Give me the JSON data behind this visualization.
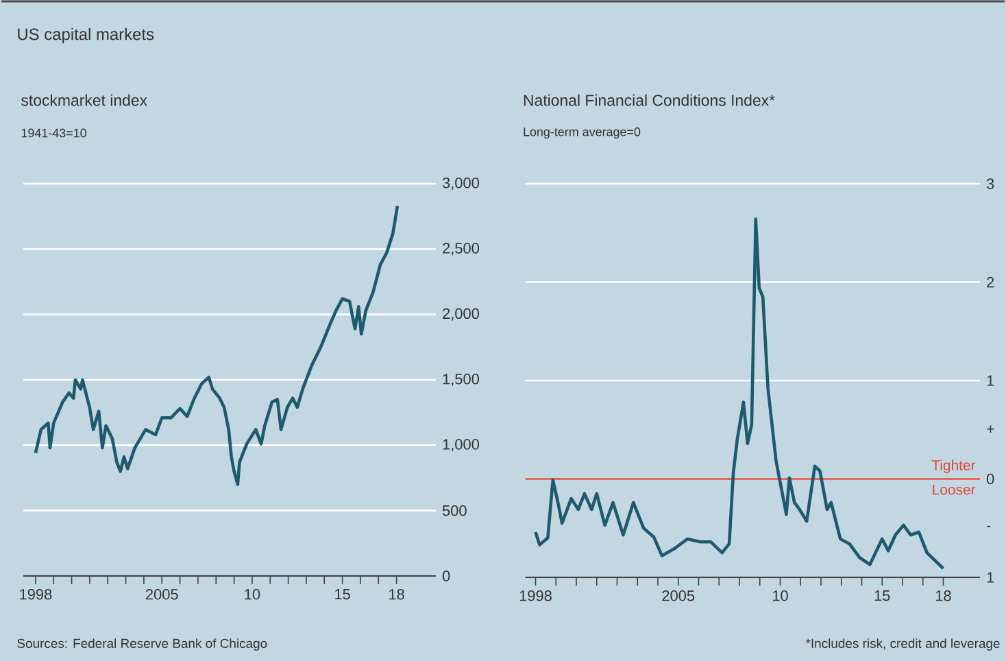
{
  "chart_data": [
    {
      "type": "line",
      "title": "stockmarket index",
      "subtitle": "1941-43=10",
      "annotations": [
        "US capital markets",
        "Sources: Federal Reserve Bank of Chicago"
      ],
      "x": [
        1998.0,
        1998.3,
        1998.7,
        1998.8,
        1999.0,
        1999.5,
        1999.85,
        2000.1,
        2000.2,
        2000.5,
        2000.6,
        2000.99,
        2001.2,
        2001.5,
        2001.7,
        2001.9,
        2002.25,
        2002.5,
        2002.7,
        2002.9,
        2003.1,
        2003.5,
        2004.1,
        2004.65,
        2005.0,
        2005.5,
        2006.0,
        2006.4,
        2006.8,
        2007.2,
        2007.6,
        2007.8,
        2008.2,
        2008.45,
        2008.7,
        2008.85,
        2009.0,
        2009.2,
        2009.3,
        2009.7,
        2010.2,
        2010.5,
        2010.7,
        2011.1,
        2011.4,
        2011.6,
        2011.95,
        2012.25,
        2012.5,
        2012.8,
        2013.3,
        2013.8,
        2014.3,
        2014.65,
        2015.0,
        2015.4,
        2015.7,
        2015.9,
        2016.05,
        2016.3,
        2016.7,
        2017.1,
        2017.45,
        2017.8,
        2018.05
      ],
      "values": [
        940,
        1120,
        1170,
        980,
        1170,
        1330,
        1400,
        1360,
        1500,
        1430,
        1500,
        1290,
        1120,
        1260,
        980,
        1150,
        1050,
        870,
        800,
        910,
        820,
        980,
        1120,
        1080,
        1210,
        1210,
        1280,
        1220,
        1360,
        1470,
        1520,
        1430,
        1360,
        1290,
        1120,
        910,
        800,
        700,
        870,
        1010,
        1120,
        1010,
        1150,
        1330,
        1350,
        1120,
        1290,
        1360,
        1290,
        1430,
        1610,
        1750,
        1920,
        2030,
        2120,
        2100,
        1890,
        2060,
        1850,
        2030,
        2170,
        2380,
        2470,
        2620,
        2830
      ],
      "color": "#1d5a6e",
      "grid": "y",
      "xlim": [
        1997.32,
        2020.18
      ],
      "ylim": [
        0,
        3000
      ],
      "xticks": [
        {
          "value": 1998,
          "label": "1998"
        },
        {
          "value": 1999,
          "label": null
        },
        {
          "value": 2000,
          "label": null
        },
        {
          "value": 2001,
          "label": null
        },
        {
          "value": 2002,
          "label": null
        },
        {
          "value": 2003,
          "label": null
        },
        {
          "value": 2004,
          "label": null
        },
        {
          "value": 2005,
          "label": "2005"
        },
        {
          "value": 2006,
          "label": null
        },
        {
          "value": 2007,
          "label": null
        },
        {
          "value": 2008,
          "label": null
        },
        {
          "value": 2009,
          "label": null
        },
        {
          "value": 2010,
          "label": "10"
        },
        {
          "value": 2011,
          "label": null
        },
        {
          "value": 2012,
          "label": null
        },
        {
          "value": 2013,
          "label": null
        },
        {
          "value": 2014,
          "label": null
        },
        {
          "value": 2015,
          "label": "15"
        },
        {
          "value": 2016,
          "label": null
        },
        {
          "value": 2017,
          "label": null
        },
        {
          "value": 2018,
          "label": "18"
        }
      ],
      "yticks": [
        {
          "value": 0,
          "label": "0"
        },
        {
          "value": 500,
          "label": "500"
        },
        {
          "value": 1000,
          "label": "1,000"
        },
        {
          "value": 1500,
          "label": "1,500"
        },
        {
          "value": 2000,
          "label": "2,000"
        },
        {
          "value": 2500,
          "label": "2,500"
        },
        {
          "value": 3000,
          "label": "3,000"
        }
      ]
    },
    {
      "type": "line",
      "title": "National Financial Conditions Index*",
      "subtitle": "Long-term average=0",
      "annotations": [
        "Tighter",
        "Looser",
        "*Includes risk, credit and leverage"
      ],
      "x": [
        1998.0,
        1998.2,
        1998.6,
        1998.85,
        1999.1,
        1999.3,
        1999.75,
        2000.1,
        2000.4,
        2000.75,
        2001.0,
        2001.4,
        2001.8,
        2002.3,
        2002.8,
        2003.3,
        2003.8,
        2004.2,
        2004.8,
        2005.45,
        2006.1,
        2006.6,
        2007.15,
        2007.5,
        2007.7,
        2007.9,
        2008.2,
        2008.4,
        2008.6,
        2008.8,
        2008.97,
        2009.15,
        2009.4,
        2009.8,
        2010.3,
        2010.45,
        2010.7,
        2010.95,
        2011.3,
        2011.7,
        2011.95,
        2012.3,
        2012.5,
        2012.95,
        2013.4,
        2013.9,
        2014.4,
        2015.0,
        2015.3,
        2015.65,
        2016.05,
        2016.4,
        2016.8,
        2017.2,
        2018.0
      ],
      "values": [
        -0.54,
        -0.67,
        -0.6,
        -0.01,
        -0.24,
        -0.45,
        -0.2,
        -0.31,
        -0.15,
        -0.31,
        -0.15,
        -0.47,
        -0.24,
        -0.57,
        -0.24,
        -0.5,
        -0.59,
        -0.78,
        -0.71,
        -0.61,
        -0.64,
        -0.64,
        -0.75,
        -0.66,
        0.06,
        0.41,
        0.78,
        0.36,
        0.55,
        2.64,
        1.94,
        1.85,
        0.92,
        0.18,
        -0.36,
        0.01,
        -0.24,
        -0.31,
        -0.43,
        0.13,
        0.08,
        -0.31,
        -0.24,
        -0.61,
        -0.66,
        -0.8,
        -0.87,
        -0.61,
        -0.73,
        -0.57,
        -0.47,
        -0.57,
        -0.54,
        -0.75,
        -0.91
      ],
      "color": "#1d5a6e",
      "grid": "y",
      "xlim": [
        1997.5,
        2019.8
      ],
      "ylim": [
        -1,
        3
      ],
      "xticks": [
        {
          "value": 1998,
          "label": "1998"
        },
        {
          "value": 1999,
          "label": null
        },
        {
          "value": 2000,
          "label": null
        },
        {
          "value": 2001,
          "label": null
        },
        {
          "value": 2002,
          "label": null
        },
        {
          "value": 2003,
          "label": null
        },
        {
          "value": 2004,
          "label": null
        },
        {
          "value": 2005,
          "label": "2005"
        },
        {
          "value": 2006,
          "label": null
        },
        {
          "value": 2007,
          "label": null
        },
        {
          "value": 2008,
          "label": null
        },
        {
          "value": 2009,
          "label": null
        },
        {
          "value": 2010,
          "label": "10"
        },
        {
          "value": 2011,
          "label": null
        },
        {
          "value": 2012,
          "label": null
        },
        {
          "value": 2013,
          "label": null
        },
        {
          "value": 2014,
          "label": null
        },
        {
          "value": 2015,
          "label": "15"
        },
        {
          "value": 2016,
          "label": null
        },
        {
          "value": 2017,
          "label": null
        },
        {
          "value": 2018,
          "label": "18"
        }
      ],
      "yticks": [
        {
          "value": -1,
          "label": "1"
        },
        {
          "value": -0.5,
          "label": "-"
        },
        {
          "value": 0,
          "label": "0"
        },
        {
          "value": 0.5,
          "label": "+"
        },
        {
          "value": 1,
          "label": "1"
        },
        {
          "value": 2,
          "label": "2"
        },
        {
          "value": 3,
          "label": "3"
        }
      ],
      "ref_lines": [
        {
          "axis": "y",
          "value": 0,
          "color": "#e0473a"
        }
      ]
    }
  ]
}
